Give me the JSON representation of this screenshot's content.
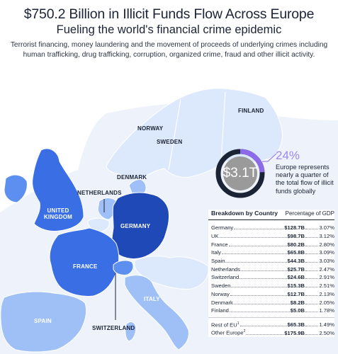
{
  "header": {
    "title": "$750.2 Billion in Illicit Funds Flow Across Europe",
    "subtitle": "Fueling the world's financial crime epidemic",
    "description": "Terrorist financing, money laundering and the movement of proceeds of underlying crimes including human trafficking, drug trafficking, corruption, organized crime, fraud and other illicit activity."
  },
  "map_labels": {
    "finland": "FINLAND",
    "norway": "NORWAY",
    "sweden": "SWEDEN",
    "denmark": "DENMARK",
    "netherlands": "NETHERLANDS",
    "united_kingdom_1": "UNITED",
    "united_kingdom_2": "KINGDOM",
    "germany": "GERMANY",
    "france": "FRANCE",
    "italy": "ITALY",
    "spain": "SPAIN",
    "switzerland": "SWITZERLAND"
  },
  "stat": {
    "value": "$3.1T",
    "percent": "24%",
    "text": "Europe represents nearly a quarter of the total flow of illicit funds globally",
    "share": 0.24
  },
  "breakdown": {
    "title": "Breakdown by Country",
    "column": "Percentage of GDP",
    "rows": [
      {
        "country": "Germany",
        "value": "$128.7B",
        "pct": "3.07%"
      },
      {
        "country": "UK",
        "value": "$98.7B",
        "pct": "3.12%"
      },
      {
        "country": "France",
        "value": "$80.2B",
        "pct": "2.80%"
      },
      {
        "country": "Italy",
        "value": "$65.8B",
        "pct": "3.09%"
      },
      {
        "country": "Spain",
        "value": "$44.3B",
        "pct": "3.03%"
      },
      {
        "country": "Netherlands",
        "value": "$25.7B",
        "pct": "2.47%"
      },
      {
        "country": "Switzerland",
        "value": "$24.6B",
        "pct": "2.91%"
      },
      {
        "country": "Sweden",
        "value": "$15.3B",
        "pct": "2.51%"
      },
      {
        "country": "Norway",
        "value": "$12.7B",
        "pct": "2.13%"
      },
      {
        "country": "Denmark",
        "value": "$8.2B",
        "pct": "2.05%"
      },
      {
        "country": "Finland",
        "value": "$5.0B",
        "pct": "1.78%"
      }
    ],
    "extra_rows": [
      {
        "country": "Rest of EU",
        "sup": "1",
        "value": "$65.3B",
        "pct": "1.49%"
      },
      {
        "country": "Other Europe",
        "sup": "2",
        "value": "$175.9B",
        "pct": "2.50%"
      }
    ]
  },
  "colors": {
    "ocean": "#ffffff",
    "land_faint": "#eef3fb",
    "tier1": "#1f49b6",
    "tier2": "#3a6ee4",
    "tier3": "#5d8ff0",
    "tier4": "#9ec0f6",
    "tier5": "#dce8fb",
    "ring": "#1b2336",
    "ring_accent": "#8d6be8",
    "accent_text": "#9f86ee"
  }
}
